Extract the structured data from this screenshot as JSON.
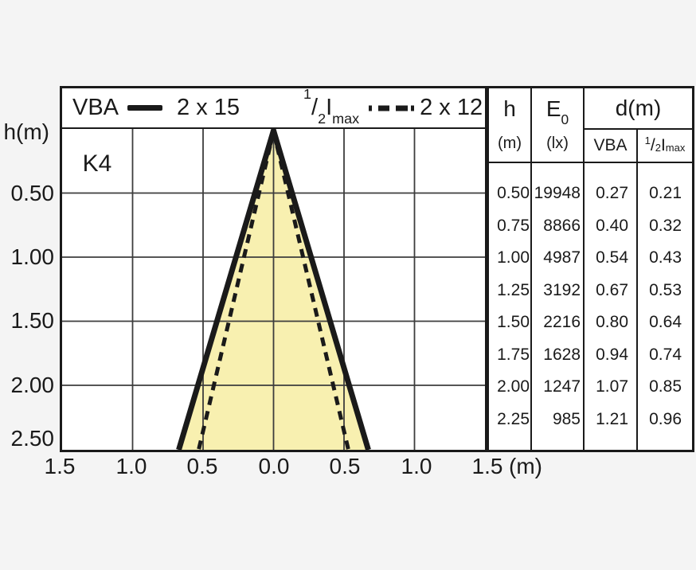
{
  "colors": {
    "cone_fill": "#F8F0B0",
    "line": "#1A1A1A",
    "grid": "#3D3D3D",
    "panel": "#FFFFFF"
  },
  "legend": {
    "series1_name": "VBA",
    "series1_value": "2 x 15",
    "series2_frac_num": "1",
    "series2_frac_slash": "/",
    "series2_frac_den": "2",
    "series2_base": "I",
    "series2_sub": "max",
    "series2_value": "2 x 12"
  },
  "chart": {
    "curve_label": "K4",
    "y_axis_title": "h(m)",
    "y_ticks": [
      "0.50",
      "1.00",
      "1.50",
      "2.00",
      "2.50"
    ],
    "x_ticks": [
      "1.5",
      "1.0",
      "0.5",
      "0.0",
      "0.5",
      "1.0",
      "1.5"
    ],
    "x_unit": "(m)"
  },
  "table": {
    "header": {
      "h_title": "h",
      "h_unit": "(m)",
      "e0_base": "E",
      "e0_sub": "0",
      "e0_unit": "(lx)",
      "d_title": "d(m)",
      "d_sub1": "VBA",
      "d_sub2_frac_num": "1",
      "d_sub2_frac_slash": "/",
      "d_sub2_frac_den": "2",
      "d_sub2_base": "I",
      "d_sub2_sub": "max"
    },
    "rows": [
      {
        "h": "0.50",
        "e0": "19948",
        "d_vba": "0.27",
        "d_imax": "0.21"
      },
      {
        "h": "0.75",
        "e0": "8866",
        "d_vba": "0.40",
        "d_imax": "0.32"
      },
      {
        "h": "1.00",
        "e0": "4987",
        "d_vba": "0.54",
        "d_imax": "0.43"
      },
      {
        "h": "1.25",
        "e0": "3192",
        "d_vba": "0.67",
        "d_imax": "0.53"
      },
      {
        "h": "1.50",
        "e0": "2216",
        "d_vba": "0.80",
        "d_imax": "0.64"
      },
      {
        "h": "1.75",
        "e0": "1628",
        "d_vba": "0.94",
        "d_imax": "0.74"
      },
      {
        "h": "2.00",
        "e0": "1247",
        "d_vba": "1.07",
        "d_imax": "0.85"
      },
      {
        "h": "2.25",
        "e0": "985",
        "d_vba": "1.21",
        "d_imax": "0.96"
      }
    ]
  },
  "chart_data": {
    "type": "area",
    "title": "Luminaire light-beam cone diagram K4",
    "xlabel": "(m)",
    "ylabel": "h(m)",
    "x_range_m": [
      -1.5,
      1.5
    ],
    "h_range_m": [
      0,
      2.5
    ],
    "grid": true,
    "legend_position": "top",
    "series": [
      {
        "name": "VBA",
        "legend_value": "2 x 15",
        "style": "solid",
        "half_angle_deg": 15,
        "cone_outline_m": [
          [
            0,
            0
          ],
          [
            -0.67,
            2.5
          ],
          [
            0.67,
            2.5
          ]
        ],
        "fill": "#F8F0B0"
      },
      {
        "name": "1/2 Imax",
        "legend_value": "2 x 12",
        "style": "dashed",
        "half_angle_deg": 12,
        "cone_outline_m": [
          [
            0,
            0
          ],
          [
            -0.53,
            2.5
          ],
          [
            0.53,
            2.5
          ]
        ],
        "fill": "none"
      }
    ],
    "table": {
      "columns": [
        "h (m)",
        "E0 (lx)",
        "d(m) VBA",
        "d(m) 1/2 Imax"
      ],
      "rows": [
        [
          0.5,
          19948,
          0.27,
          0.21
        ],
        [
          0.75,
          8866,
          0.4,
          0.32
        ],
        [
          1.0,
          4987,
          0.54,
          0.43
        ],
        [
          1.25,
          3192,
          0.67,
          0.53
        ],
        [
          1.5,
          2216,
          0.8,
          0.64
        ],
        [
          1.75,
          1628,
          0.94,
          0.74
        ],
        [
          2.0,
          1247,
          1.07,
          0.85
        ],
        [
          2.25,
          985,
          1.21,
          0.96
        ]
      ]
    }
  }
}
